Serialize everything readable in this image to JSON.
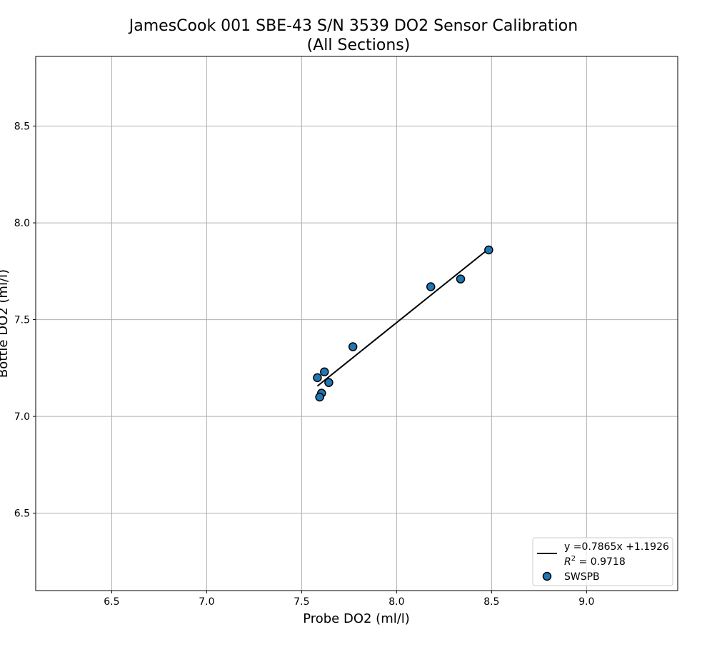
{
  "chart_data": {
    "type": "scatter",
    "title": "JamesCook 001 SBE-43 S/N 3539 DO2 Sensor Calibration",
    "subtitle": "(All Sections)",
    "xlabel": "Probe DO2 (ml/l)",
    "ylabel": "Bottle DO2 (ml/l)",
    "xlim": [
      6.1,
      9.48
    ],
    "ylim": [
      6.1,
      8.86
    ],
    "xticks": [
      "6.5",
      "7.0",
      "7.5",
      "8.0",
      "8.5",
      "9.0"
    ],
    "yticks": [
      "6.5",
      "7.0",
      "7.5",
      "8.0",
      "8.5"
    ],
    "grid": true,
    "legend_position": "lower-right",
    "series": [
      {
        "name": "SWSPB",
        "type": "scatter",
        "color": "#1f77b4",
        "points": [
          {
            "x": 7.583,
            "y": 7.2
          },
          {
            "x": 7.62,
            "y": 7.23
          },
          {
            "x": 7.643,
            "y": 7.175
          },
          {
            "x": 7.605,
            "y": 7.12
          },
          {
            "x": 7.595,
            "y": 7.1
          },
          {
            "x": 7.77,
            "y": 7.36
          },
          {
            "x": 8.18,
            "y": 7.67
          },
          {
            "x": 8.337,
            "y": 7.71
          },
          {
            "x": 8.485,
            "y": 7.86
          }
        ]
      }
    ],
    "fit": {
      "label": "y =0.7865x +1.1926",
      "r2_label": "R² = 0.9718",
      "r2_prefix": "R",
      "r2_sup": "2",
      "r2_value": " = 0.9718",
      "slope": 0.7865,
      "intercept": 1.1926,
      "x_range": [
        7.583,
        8.485
      ],
      "color": "#000000"
    }
  }
}
